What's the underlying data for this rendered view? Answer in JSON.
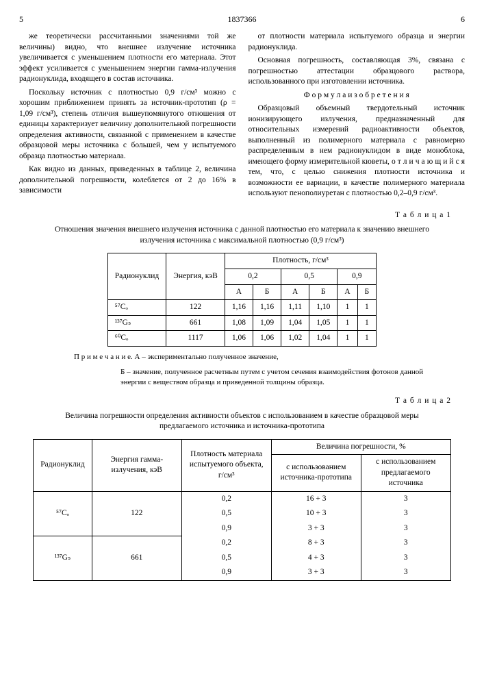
{
  "header": {
    "page_left": "5",
    "doc_number": "1837366",
    "page_right": "6"
  },
  "col_left": {
    "p1": "же теоретически рассчитанными значениями той же величины) видно, что внешнее излучение источника увеличивается с уменьшением плотности его материала. Этот эффект усиливается с уменьшением энергии гамма-излучения радионуклида, входящего в состав источника.",
    "p2": "Поскольку источник с плотностью 0,9 г/см³ можно с хорошим приближением принять за источник-прототип (ρ = 1,09 г/см³), степень отличия вышеупомянутого отношения от единицы характеризует величину дополнительной погрешности определения активности, связанной с применением в качестве образцовой меры источника с большей, чем у испытуемого образца плотностью материала.",
    "p3": "Как видно из данных, приведенных в таблице 2, величина дополнительной погрешности, колеблется от 2 до 16% в зависимости"
  },
  "col_right": {
    "p1": "от плотности материала испытуемого образца и энергии радионуклида.",
    "p2": "Основная погрешность, составляющая 3%, связана с погрешностью аттестации образцового раствора, использованного при изготовлении источника.",
    "formula_title": "Ф о р м у л а  и з о б р е т е н и я",
    "p3": "Образцовый объемный твердотельный источник ионизирующего излучения, предназначенный для относительных измерений радиоактивности объектов, выполненный из полимерного материала с равномерно распределенным в нем радионуклидом в виде моноблока, имеющего форму измерительной кюветы, о т л и ч а ю щ и й с я тем, что, с целью снижения плотности источника и возможности ее вариации, в качестве полимерного материала используют пенополиуретан с плотностью 0,2–0,9 г/см³."
  },
  "line_numbers": {
    "n5": "5",
    "n10": "10",
    "n15": "15",
    "n20": "20"
  },
  "table1": {
    "label": "Т а б л и ц а 1",
    "caption": "Отношения значения внешнего излучения источника с данной плотностью его материала к значению внешнего излучения источника с максимальной плотностью (0,9 г/см³)",
    "h_nuklid": "Радионуклид",
    "h_energy": "Энергия, кэВ",
    "h_density": "Плотность, г/см³",
    "d1": "0,2",
    "d2": "0,5",
    "d3": "0,9",
    "hA": "А",
    "hB": "Б",
    "rows": [
      {
        "nuklid": "⁵⁷Cₒ",
        "energy": "122",
        "v": [
          "1,16",
          "1,16",
          "1,11",
          "1,10",
          "1",
          "1"
        ]
      },
      {
        "nuklid": "¹³⁷Gₛ",
        "energy": "661",
        "v": [
          "1,08",
          "1,09",
          "1,04",
          "1,05",
          "1",
          "1"
        ]
      },
      {
        "nuklid": "⁶⁰Cₒ",
        "energy": "1117",
        "v": [
          "1,06",
          "1,06",
          "1,02",
          "1,04",
          "1",
          "1"
        ]
      }
    ],
    "note1": "П р и м е ч а н и е. А – экспериментально полученное значение,",
    "note2": "Б – значение, полученное расчетным путем с учетом сечения взаимодействия фотонов данной энергии с веществом образца и приведенной толщины образца."
  },
  "table2": {
    "label": "Т а б л и ц а 2",
    "caption": "Величина погрешности определения активности объектов с использованием в качестве образцовой меры предлагаемого источника и источника-прототипа",
    "h_nuklid": "Радионуклид",
    "h_energy": "Энергия гамма-излучения, кэВ",
    "h_density": "Плотность материала испытуемого объекта, г/см³",
    "h_error": "Величина погрешности, %",
    "h_proto": "с использованием источника-прототипа",
    "h_proposed": "с использованием предлагаемого источника",
    "rows": [
      {
        "nuklid": "⁵⁷Cₒ",
        "energy": "122",
        "d": "0,2",
        "p": "16 + 3",
        "q": "3"
      },
      {
        "nuklid": "",
        "energy": "",
        "d": "0,5",
        "p": "10 + 3",
        "q": "3"
      },
      {
        "nuklid": "",
        "energy": "",
        "d": "0,9",
        "p": "3 + 3",
        "q": "3"
      },
      {
        "nuklid": "¹³⁷Gₛ",
        "energy": "661",
        "d": "0,2",
        "p": "8 + 3",
        "q": "3"
      },
      {
        "nuklid": "",
        "energy": "",
        "d": "0,5",
        "p": "4 + 3",
        "q": "3"
      },
      {
        "nuklid": "",
        "energy": "",
        "d": "0,9",
        "p": "3 + 3",
        "q": "3"
      }
    ]
  }
}
